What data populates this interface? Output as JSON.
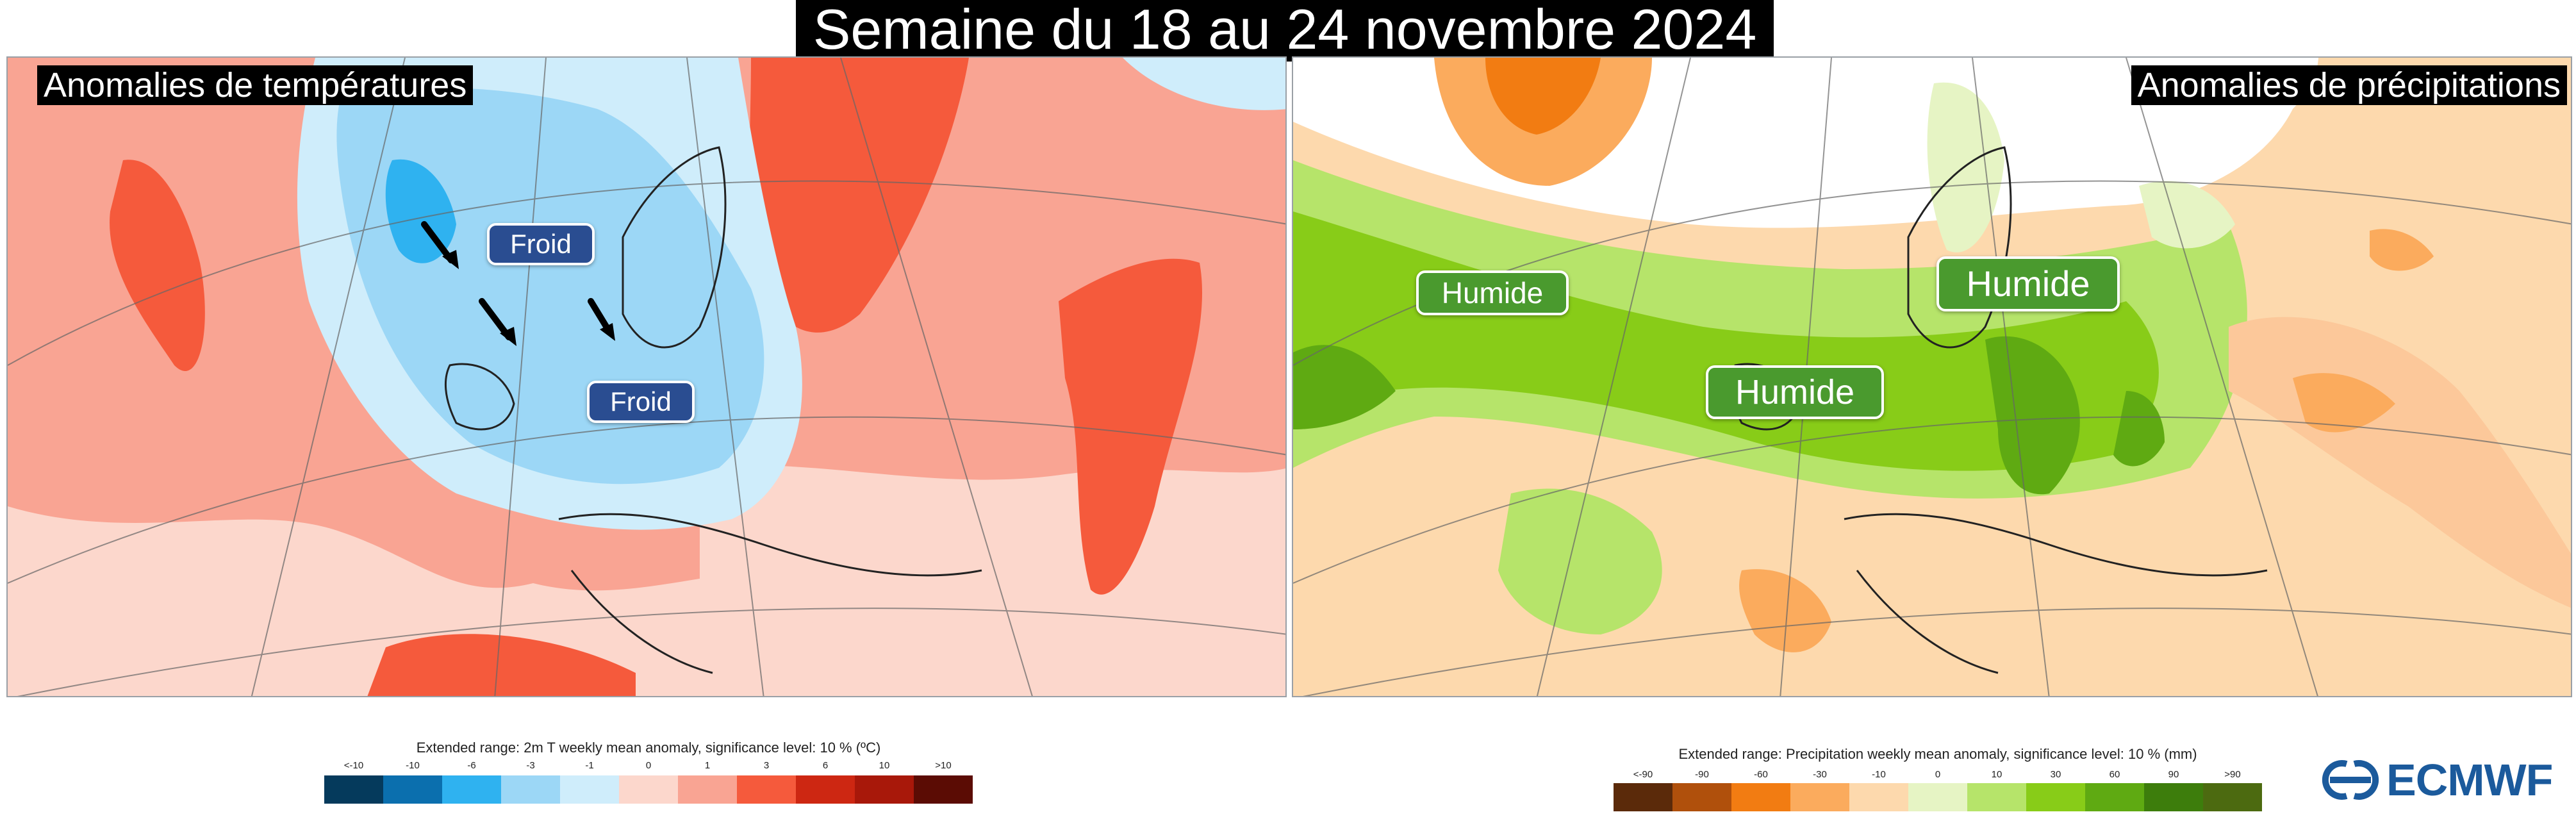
{
  "title": "Semaine du 18 au 24 novembre 2024",
  "temperature_map": {
    "title": "Anomalies de températures",
    "labels": [
      "Froid",
      "Froid"
    ],
    "legend": {
      "caption": "Extended range: 2m T weekly mean anomaly, significance level: 10 % (ºC)",
      "ticks": [
        "<-10",
        "-10",
        "-6",
        "-3",
        "-1",
        "0",
        "1",
        "3",
        "6",
        "10",
        ">10"
      ],
      "colors": [
        "#053a5c",
        "#0b6fae",
        "#2fb2f0",
        "#9cd7f6",
        "#cfedfb",
        "#fcd7cc",
        "#f9a493",
        "#f55a3c",
        "#cd2712",
        "#a8180a",
        "#5b0c04"
      ]
    }
  },
  "precipitation_map": {
    "title": "Anomalies de précipitations",
    "labels": [
      "Humide",
      "Humide",
      "Humide"
    ],
    "legend": {
      "caption": "Extended range: Precipitation weekly mean anomaly, significance level: 10 % (mm)",
      "ticks": [
        "<-90",
        "-90",
        "-60",
        "-30",
        "-10",
        "0",
        "10",
        "30",
        "60",
        "90",
        ">90"
      ],
      "colors": [
        "#5b2a0a",
        "#b0500c",
        "#f27c12",
        "#fbab5d",
        "#fdd9ad",
        "#e6f4c4",
        "#b6e46a",
        "#88cc18",
        "#5faa12",
        "#3d7d0c",
        "#4c6a10"
      ]
    }
  },
  "logo": {
    "text": "ECMWF"
  }
}
